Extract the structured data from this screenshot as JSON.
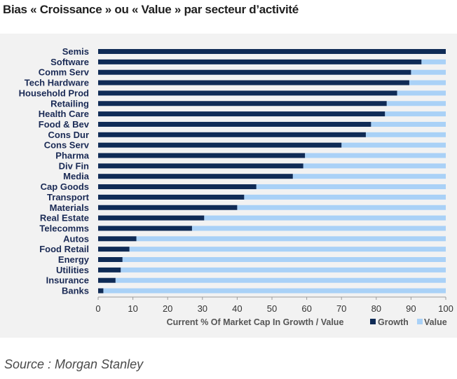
{
  "title": "Bias « Croissance » ou « Value » par secteur d’activité",
  "source": "Source : Morgan Stanley",
  "colors": {
    "growth": "#0f2b56",
    "value": "#a9d1f7",
    "background": "#f2f2f2"
  },
  "chart_data": {
    "type": "bar",
    "orientation": "horizontal",
    "stacked": true,
    "categories": [
      "Semis",
      "Software",
      "Comm Serv",
      "Tech Hardware",
      "Household Prod",
      "Retailing",
      "Health Care",
      "Food & Bev",
      "Cons Dur",
      "Cons Serv",
      "Pharma",
      "Div Fin",
      "Media",
      "Cap Goods",
      "Transport",
      "Materials",
      "Real Estate",
      "Telecomms",
      "Autos",
      "Food Retail",
      "Energy",
      "Utilities",
      "Insurance",
      "Banks"
    ],
    "series": [
      {
        "name": "Growth",
        "values": [
          100,
          93,
          90,
          89.5,
          86,
          83,
          82.5,
          78.5,
          77,
          70,
          59.5,
          59,
          56,
          45.5,
          42,
          40,
          30.5,
          27,
          11,
          9,
          7,
          6.5,
          5,
          1.5
        ]
      },
      {
        "name": "Value",
        "values": [
          0,
          7,
          10,
          10.5,
          14,
          17,
          17.5,
          21.5,
          23,
          30,
          40.5,
          41,
          44,
          54.5,
          58,
          60,
          69.5,
          73,
          89,
          91,
          93,
          93.5,
          95,
          98.5
        ]
      }
    ],
    "xlabel": "Current % Of Market Cap In Growth / Value",
    "ylabel": "",
    "xlim": [
      0,
      100
    ],
    "xticks": [
      "0",
      "10",
      "20",
      "30",
      "40",
      "50",
      "60",
      "70",
      "80",
      "90",
      "100"
    ],
    "legend_position": "bottom-right",
    "grid": false
  }
}
